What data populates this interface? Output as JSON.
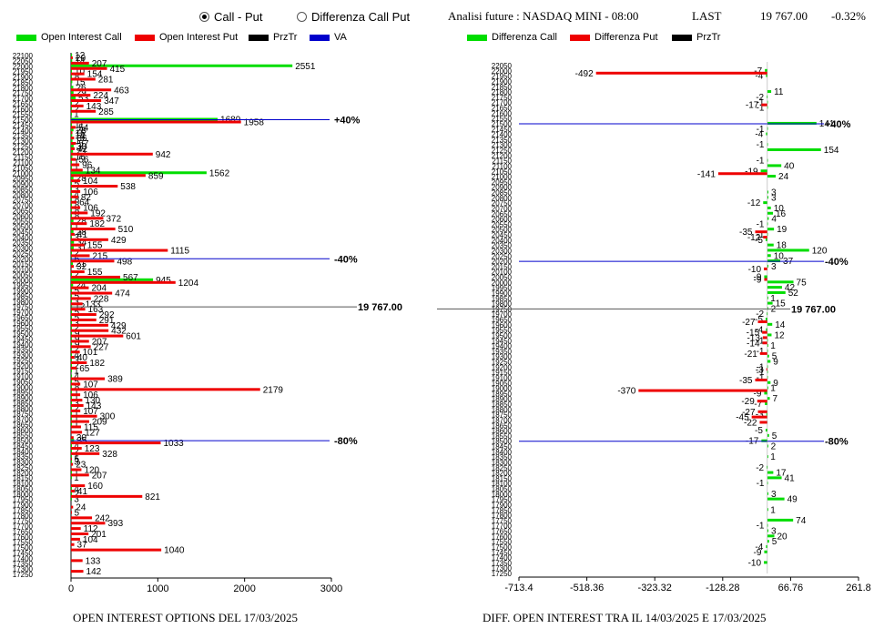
{
  "options": {
    "call_put_label": "Call - Put",
    "diff_label": "Differenza Call Put",
    "selected": "call_put"
  },
  "header": {
    "title": "Analisi future : NASDAQ MINI - 08:00",
    "last_label": "LAST",
    "last_value": "19 767.00",
    "change": "-0.32%"
  },
  "colors": {
    "call": "#00dd00",
    "put": "#ee0000",
    "prztr": "#000000",
    "va": "#0000cc",
    "last_line": "#555555"
  },
  "captions": {
    "left": "OPEN INTEREST OPTIONS DEL 17/03/2025",
    "right": "DIFF. OPEN INTEREST TRA IL 14/03/2025 E 17/03/2025"
  },
  "chart_data": [
    {
      "type": "bar",
      "orientation": "horizontal",
      "legend": [
        "Open Interest Call",
        "Open Interest Put",
        "PrzTr",
        "VA"
      ],
      "xlim": [
        0,
        3000
      ],
      "xticks": [
        0,
        1000,
        2000,
        3000
      ],
      "strike_labels": [
        "22100",
        "22050",
        "22000",
        "21950",
        "21900",
        "21850",
        "21800",
        "21750",
        "21700",
        "21650",
        "21600",
        "21550",
        "21500",
        "21450",
        "21400",
        "21350",
        "21300",
        "21250",
        "21200",
        "21150",
        "21100",
        "21050",
        "21000",
        "20950",
        "20900",
        "20850",
        "20800",
        "20750",
        "20700",
        "20650",
        "20600",
        "20550",
        "20500",
        "20450",
        "20400",
        "20350",
        "20300",
        "20250",
        "20200",
        "20150",
        "20100",
        "20050",
        "20000",
        "19950",
        "19900",
        "19850",
        "19800",
        "19750",
        "19700",
        "19650",
        "19600",
        "19550",
        "19500",
        "19450",
        "19400",
        "19350",
        "19300",
        "19250",
        "19200",
        "19150",
        "19100",
        "19050",
        "19000",
        "18950",
        "18900",
        "18850",
        "18800",
        "18750",
        "18700",
        "18650",
        "18600",
        "18550",
        "18500",
        "18450",
        "18400",
        "18350",
        "18300",
        "18250",
        "18200",
        "18150",
        "18100",
        "18050",
        "18000",
        "17950",
        "17900",
        "17850",
        "17800",
        "17750",
        "17700",
        "17650",
        "17600",
        "17550",
        "17500",
        "17450",
        "17400",
        "17350",
        "17300",
        "17250"
      ],
      "series": [
        {
          "name": "Open Interest Call",
          "values": [
            12,
            14,
            2551,
            10,
            8,
            15,
            26,
            29,
            53,
            2,
            2,
            1,
            1689,
            11,
            28,
            14,
            17,
            30,
            23,
            16,
            1,
            1,
            1562,
            28,
            5,
            3,
            4,
            8,
            8,
            8,
            8,
            28,
            1,
            28,
            3,
            34,
            31,
            2,
            6,
            21,
            0,
            2,
            945,
            24,
            5,
            5,
            3,
            12,
            5,
            5,
            3,
            2,
            9,
            9,
            9,
            2,
            4,
            3,
            2,
            1,
            4,
            5,
            8,
            1,
            1,
            3,
            2,
            1,
            1,
            1,
            0,
            0,
            35,
            4,
            2,
            1,
            3,
            0,
            1,
            1,
            0,
            4,
            2,
            3,
            0,
            0,
            0,
            0,
            0,
            0,
            0,
            0,
            0,
            0,
            0,
            0,
            0,
            0
          ]
        },
        {
          "name": "Open Interest Put",
          "values": [
            20,
            207,
            415,
            154,
            281,
            0,
            463,
            224,
            347,
            143,
            285,
            0,
            1958,
            54,
            16,
            36,
            57,
            42,
            942,
            56,
            96,
            134,
            859,
            104,
            538,
            106,
            82,
            64,
            106,
            192,
            372,
            182,
            510,
            41,
            429,
            155,
            1115,
            215,
            498,
            32,
            155,
            567,
            1204,
            204,
            474,
            228,
            133,
            163,
            292,
            291,
            429,
            432,
            601,
            207,
            227,
            101,
            40,
            182,
            65,
            0,
            389,
            107,
            2179,
            106,
            130,
            143,
            107,
            300,
            209,
            115,
            127,
            30,
            1033,
            123,
            328,
            5,
            23,
            120,
            207,
            0,
            160,
            41,
            821,
            0,
            24,
            5,
            242,
            393,
            112,
            201,
            104,
            37,
            1040,
            0,
            133,
            0,
            142,
            0
          ]
        },
        {
          "name": "PrzTr",
          "values": [
            0,
            0,
            0,
            0,
            0,
            0,
            0,
            0,
            0,
            0,
            0,
            0,
            0,
            0,
            0,
            0,
            0,
            0,
            0,
            0,
            0,
            0,
            0,
            0,
            0,
            0,
            0,
            0,
            0,
            0,
            0,
            0,
            0,
            0,
            0,
            0,
            0,
            0,
            0,
            0,
            0,
            0,
            0,
            0,
            0,
            0,
            0,
            0,
            0,
            0,
            0,
            0,
            0,
            0,
            0,
            0,
            0,
            0,
            0,
            0,
            0,
            0,
            0,
            0,
            0,
            0,
            0,
            0,
            0,
            0,
            0,
            0,
            0,
            0,
            0,
            0,
            0,
            0,
            0,
            0,
            0,
            0,
            0,
            0,
            0,
            0,
            0,
            0,
            0,
            0,
            0,
            0,
            0,
            0,
            0,
            0,
            0,
            0
          ]
        }
      ],
      "va_lines": [
        {
          "strike": "21500",
          "label": "+40%"
        },
        {
          "strike": "20200",
          "label": "-40%"
        },
        {
          "strike": "18500",
          "label": "-80%"
        }
      ],
      "last_line": {
        "strike": "19750",
        "label": "19 767.00"
      }
    },
    {
      "type": "bar",
      "orientation": "horizontal",
      "legend": [
        "Differenza Call",
        "Differenza Put",
        "PrzTr"
      ],
      "xlim": [
        -713.4,
        261.8
      ],
      "xticks": [
        -713.4,
        -518.36,
        -323.32,
        -128.28,
        66.76,
        261.8
      ],
      "strike_labels": [
        "22050",
        "22000",
        "21950",
        "21900",
        "21850",
        "21800",
        "21750",
        "21700",
        "21650",
        "21600",
        "21550",
        "21500",
        "21450",
        "21400",
        "21350",
        "21300",
        "21250",
        "21200",
        "21150",
        "21100",
        "21050",
        "21000",
        "20950",
        "20900",
        "20850",
        "20800",
        "20750",
        "20700",
        "20650",
        "20600",
        "20550",
        "20500",
        "20450",
        "20400",
        "20350",
        "20300",
        "20250",
        "20200",
        "20150",
        "20100",
        "20050",
        "20000",
        "19950",
        "19900",
        "19850",
        "19800",
        "19750",
        "19700",
        "19650",
        "19600",
        "19550",
        "19500",
        "19450",
        "19400",
        "19350",
        "19300",
        "19250",
        "19200",
        "19150",
        "19100",
        "19050",
        "19000",
        "18950",
        "18900",
        "18850",
        "18800",
        "18750",
        "18700",
        "18650",
        "18600",
        "18550",
        "18500",
        "18450",
        "18400",
        "18350",
        "18300",
        "18250",
        "18200",
        "18150",
        "18100",
        "18050",
        "18000",
        "17950",
        "17900",
        "17850",
        "17800",
        "17750",
        "17700",
        "17650",
        "17600",
        "17550",
        "17500",
        "17450",
        "17400",
        "17350",
        "17300",
        "17250"
      ],
      "series": [
        {
          "name": "Differenza Call",
          "values": [
            0,
            -7,
            -4,
            0,
            0,
            11,
            -2,
            -1,
            -1,
            0,
            0,
            141,
            -1,
            -4,
            0,
            -1,
            154,
            0,
            -1,
            40,
            -19,
            24,
            0,
            0,
            3,
            3,
            -12,
            10,
            16,
            4,
            -1,
            19,
            -1,
            -5,
            18,
            120,
            10,
            37,
            3,
            0,
            -9,
            75,
            42,
            52,
            1,
            15,
            2,
            -2,
            -5,
            14,
            -4,
            12,
            -1,
            1,
            -1,
            5,
            9,
            -1,
            -1,
            -1,
            9,
            1,
            -9,
            7,
            -7,
            0,
            -3,
            0,
            0,
            -5,
            5,
            -17,
            2,
            0,
            1,
            0,
            -2,
            17,
            41,
            -1,
            0,
            3,
            49,
            0,
            1,
            0,
            74,
            -1,
            3,
            20,
            5,
            -4,
            -9,
            0,
            -10,
            0,
            0
          ]
        },
        {
          "name": "Differenza Put",
          "values": [
            0,
            -492,
            0,
            0,
            0,
            0,
            0,
            -17,
            0,
            0,
            0,
            0,
            0,
            0,
            0,
            0,
            0,
            0,
            0,
            0,
            -141,
            0,
            0,
            0,
            0,
            0,
            0,
            0,
            0,
            0,
            0,
            -35,
            -12,
            0,
            0,
            0,
            0,
            0,
            -10,
            0,
            -9,
            0,
            0,
            0,
            0,
            0,
            0,
            0,
            -27,
            0,
            -15,
            -13,
            -14,
            0,
            -21,
            0,
            0,
            -3,
            0,
            -35,
            0,
            -370,
            0,
            -29,
            0,
            -27,
            -45,
            -22,
            0,
            0,
            0,
            0,
            0,
            0,
            0,
            0,
            0,
            0,
            0,
            0,
            0,
            0,
            0,
            0,
            0,
            0,
            0,
            0,
            0,
            0,
            0,
            0,
            0,
            0,
            0,
            0,
            0
          ]
        },
        {
          "name": "PrzTr",
          "values": [
            0,
            0,
            0,
            0,
            0,
            0,
            0,
            0,
            0,
            0,
            0,
            0,
            0,
            0,
            0,
            0,
            0,
            0,
            0,
            0,
            0,
            0,
            0,
            0,
            0,
            0,
            0,
            0,
            0,
            0,
            0,
            0,
            0,
            0,
            0,
            0,
            0,
            0,
            0,
            0,
            0,
            0,
            0,
            0,
            0,
            0,
            0,
            0,
            0,
            0,
            0,
            0,
            0,
            0,
            0,
            0,
            0,
            0,
            0,
            0,
            0,
            0,
            0,
            0,
            0,
            0,
            0,
            0,
            0,
            0,
            0,
            0,
            0,
            0,
            0,
            0,
            0,
            0,
            0,
            0,
            0,
            0,
            0,
            0,
            0,
            0,
            0,
            0,
            0,
            0,
            0,
            0,
            0,
            0,
            0,
            0,
            0
          ]
        }
      ],
      "va_lines": [
        {
          "strike": "21500",
          "label": "+40%"
        },
        {
          "strike": "20200",
          "label": "-40%"
        },
        {
          "strike": "18500",
          "label": "-80%"
        }
      ],
      "last_line": {
        "strike": "19750",
        "label": "19 767.00"
      }
    }
  ]
}
